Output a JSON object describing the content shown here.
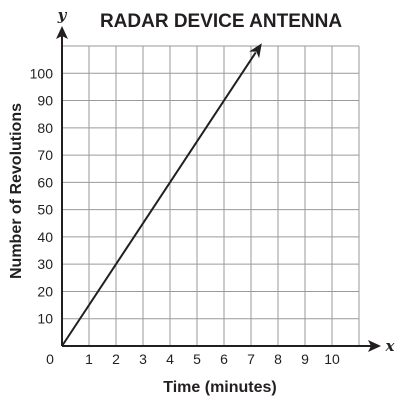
{
  "chart_data": {
    "type": "line",
    "title": "RADAR DEVICE ANTENNA",
    "xlabel": "Time (minutes)",
    "ylabel": "Number of Revolutions",
    "x_axis_symbol": "x",
    "y_axis_symbol": "y",
    "origin_label": "0",
    "xlim": [
      0,
      11
    ],
    "ylim": [
      0,
      110
    ],
    "x_ticks": [
      1,
      2,
      3,
      4,
      5,
      6,
      7,
      8,
      9,
      10
    ],
    "y_ticks": [
      10,
      20,
      30,
      40,
      50,
      60,
      70,
      80,
      90,
      100
    ],
    "grid": true,
    "series": [
      {
        "x": [
          0,
          7.4
        ],
        "y": [
          0,
          111
        ],
        "end_arrow": true
      }
    ]
  }
}
